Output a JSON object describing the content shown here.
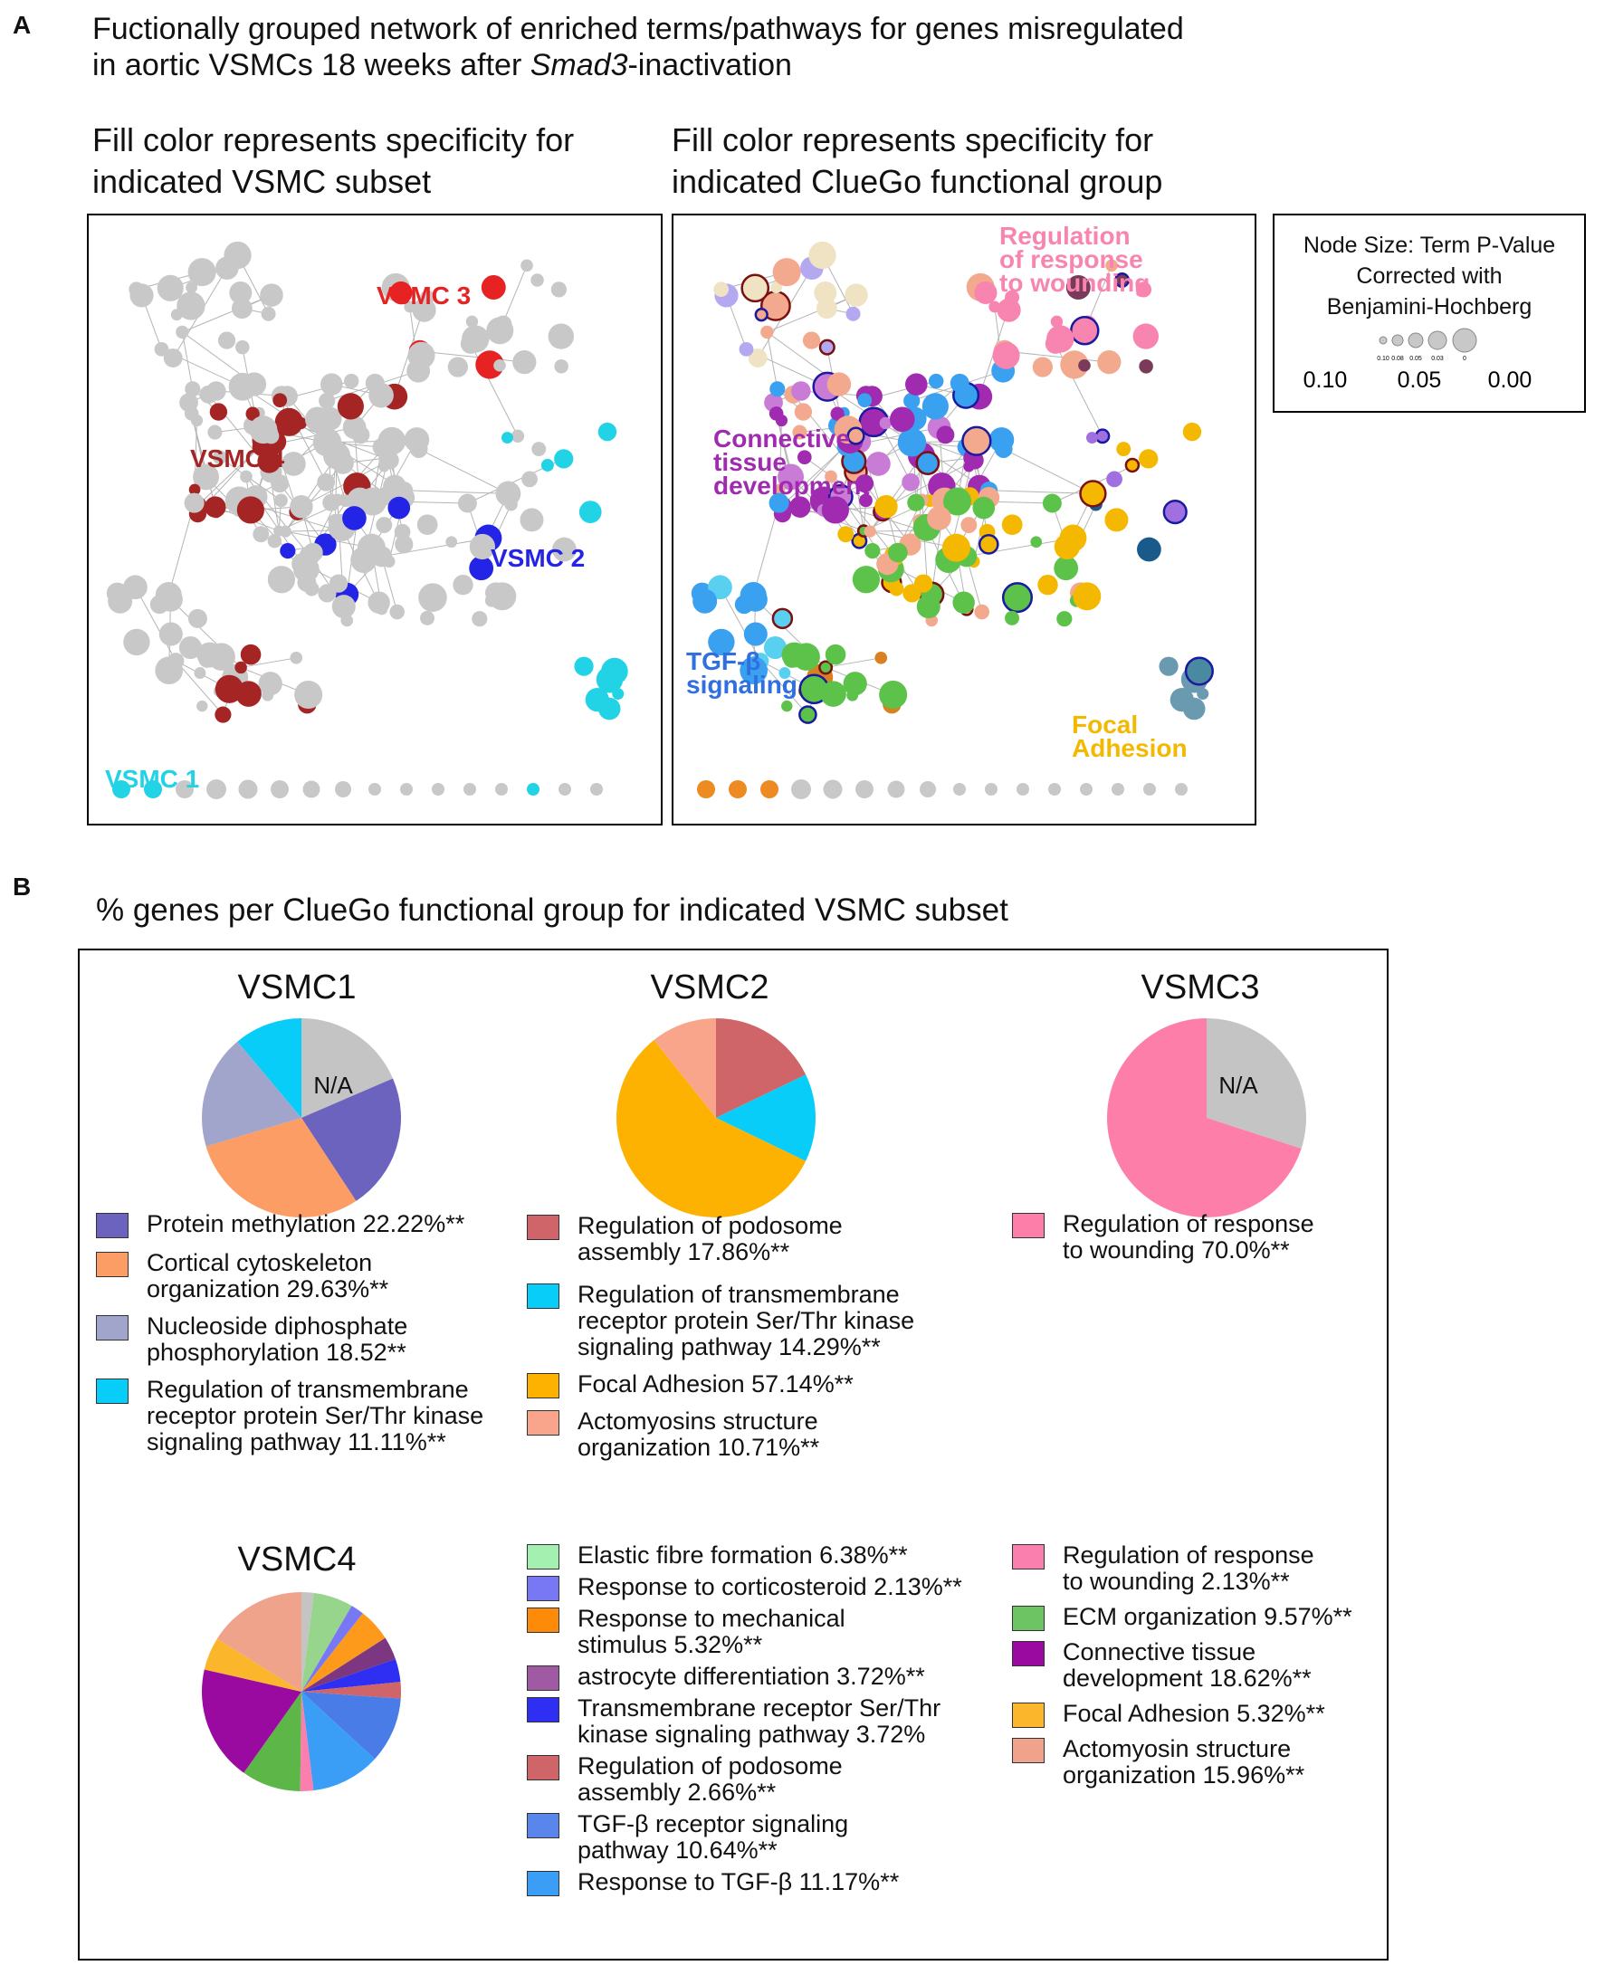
{
  "panelA": {
    "letter": "A",
    "title_line1": "Fuctionally grouped network of enriched terms/pathways for genes misregulated",
    "title_line2_pre": "in aortic VSMCs 18 weeks after ",
    "title_line2_italic": "Smad3",
    "title_line2_post": "-inactivation",
    "left_sub_line1": "Fill color represents specificity for",
    "left_sub_line2": "indicated VSMC subset",
    "right_sub_line1": "Fill color represents specificity for",
    "right_sub_line2": "indicated CluеGo functional group",
    "left_labels": {
      "vsmc3": "VSMC 3",
      "vsmc4": "VSMC 4",
      "vsmc2": "VSMC 2",
      "vsmc1": "VSMC 1"
    },
    "right_labels": {
      "wound1": "Regulation",
      "wound2": "of response",
      "wound3": "to wounding",
      "conn1": "Connective",
      "conn2": "tissue",
      "conn3": "development",
      "tgf1": "TGF-β",
      "tgf2": "signaling",
      "focal1": "Focal",
      "focal2": "Adhesion"
    },
    "node_size_legend": {
      "line1": "Node Size: Term P-Value",
      "line2": "Corrected with",
      "line3": "Benjamini-Hochberg",
      "small_ticks": [
        "0.10",
        "0.08",
        "0.05",
        "0.03",
        "0"
      ],
      "big_ticks": [
        "0.10",
        "0.05",
        "0.00"
      ]
    },
    "colors": {
      "grey": "#c8c8c8",
      "vsmc1": "#22d3e6",
      "vsmc2": "#2424e6",
      "vsmc3": "#e62222",
      "vsmc4": "#a52424",
      "wound": "#f785b0",
      "conn": "#a02ab0",
      "tgf": "#3aa0f0",
      "focal": "#f5b800",
      "ecm": "#5cc24a",
      "acto": "#f2a98d"
    }
  },
  "panelB": {
    "letter": "B",
    "title": "% genes per ClueGo functional group for indicated VSMC subset",
    "pies": [
      {
        "name": "VSMC1",
        "na_label": "N/A",
        "slices": [
          {
            "label": "N/A",
            "value": 18.52,
            "color": "#c4c4c4"
          },
          {
            "label": "Protein methylation",
            "value": 22.22,
            "color": "#6b63bd"
          },
          {
            "label": "Cortical cytoskeleton organization",
            "value": 29.63,
            "color": "#fb9d64"
          },
          {
            "label": "Nucleoside diphosphate phosphorylation",
            "value": 18.52,
            "color": "#a1a5cc"
          },
          {
            "label": "Regulation of transmembrane receptor protein Ser/Thr kinase signaling pathway",
            "value": 11.11,
            "color": "#08cdf8"
          }
        ]
      },
      {
        "name": "VSMC2",
        "slices": [
          {
            "label": "Regulation of podosome assembly",
            "value": 17.86,
            "color": "#cf6568"
          },
          {
            "label": "Regulation of transmembrane receptor protein Ser/Thr kinase signaling pathway",
            "value": 14.29,
            "color": "#08cdf8"
          },
          {
            "label": "Focal Adhesion",
            "value": 57.14,
            "color": "#fdb201"
          },
          {
            "label": "Actomyosins structure organization",
            "value": 10.71,
            "color": "#f9a58c"
          }
        ]
      },
      {
        "name": "VSMC3",
        "na_label": "N/A",
        "slices": [
          {
            "label": "N/A",
            "value": 30.0,
            "color": "#c4c4c4"
          },
          {
            "label": "Regulation of response to wounding",
            "value": 70.0,
            "color": "#fd7ea9"
          }
        ]
      },
      {
        "name": "VSMC4",
        "slices": [
          {
            "label": "N/A",
            "value": 2.0,
            "color": "#c4c4c4"
          },
          {
            "label": "Elastic fibre formation",
            "value": 6.38,
            "color": "#97d58c"
          },
          {
            "label": "Response to corticosteroid",
            "value": 2.13,
            "color": "#7878f4"
          },
          {
            "label": "Response to mechanical stimulus",
            "value": 5.32,
            "color": "#fd9a1c"
          },
          {
            "label": "astrocyte differentiation",
            "value": 3.72,
            "color": "#7d3680"
          },
          {
            "label": "Transmembrane receptor Ser/Thr kinase signaling pathway",
            "value": 3.72,
            "color": "#2e2ff2"
          },
          {
            "label": "Regulation of podosome assembly",
            "value": 2.66,
            "color": "#cf6568"
          },
          {
            "label": "TGF-β receptor signaling pathway",
            "value": 10.64,
            "color": "#4a7ce8"
          },
          {
            "label": "Response to TGF-β",
            "value": 11.17,
            "color": "#3a9ef6"
          },
          {
            "label": "Regulation of response to wounding",
            "value": 2.13,
            "color": "#fb7fae"
          },
          {
            "label": "ECM organization",
            "value": 9.57,
            "color": "#5cb748"
          },
          {
            "label": "Connective tissue development",
            "value": 18.62,
            "color": "#9a0aa0"
          },
          {
            "label": "Focal Adhesion",
            "value": 5.32,
            "color": "#fbb62c"
          },
          {
            "label": "Actomyosin structure organization",
            "value": 15.96,
            "color": "#efa38a"
          }
        ]
      }
    ],
    "legends": {
      "vsmc1": [
        {
          "text": "Protein methylation 22.22%**",
          "color": "#6b63bd"
        },
        {
          "text": "Cortical cytoskeleton\norganization 29.63%**",
          "color": "#fb9d64"
        },
        {
          "text": "Nucleoside diphosphate\nphosphorylation 18.52**",
          "color": "#a1a5cc"
        },
        {
          "text": "Regulation of transmembrane\nreceptor protein Ser/Thr kinase\nsignaling pathway 11.11%**",
          "color": "#08cdf8"
        }
      ],
      "vsmc2": [
        {
          "text": "Regulation of podosome\nassembly 17.86%**",
          "color": "#cf6568"
        },
        {
          "text": "Regulation of transmembrane\nreceptor protein Ser/Thr kinase\nsignaling pathway 14.29%**",
          "color": "#08cdf8"
        },
        {
          "text": "Focal Adhesion 57.14%**",
          "color": "#fdb201"
        },
        {
          "text": "Actomyosins structure\norganization  10.71%**",
          "color": "#f9a58c"
        }
      ],
      "vsmc3": [
        {
          "text": "Regulation of response\nto wounding  70.0%**",
          "color": "#fd7ea9"
        }
      ],
      "vsmc4_mid": [
        {
          "text": "Elastic fibre formation 6.38%**",
          "color": "#a3f0b0"
        },
        {
          "text": "Response to corticosteroid 2.13%**",
          "color": "#7878f4"
        },
        {
          "text": "Response to mechanical\nstimulus 5.32%**",
          "color": "#fd8a08"
        },
        {
          "text": "astrocyte differentiation 3.72%**",
          "color": "#a05aa4"
        },
        {
          "text": "Transmembrane receptor Ser/Thr\nkinase signaling pathway 3.72%",
          "color": "#2e2ff2"
        },
        {
          "text": "Regulation of podosome\nassembly 2.66%**",
          "color": "#cf6568"
        },
        {
          "text": "TGF-β receptor signaling\npathway 10.64%**",
          "color": "#5a86ec"
        },
        {
          "text": "Response to TGF-β 11.17%**",
          "color": "#3a9ef6"
        }
      ],
      "vsmc4_right": [
        {
          "text": "Regulation of response\nto wounding 2.13%**",
          "color": "#fb7fae"
        },
        {
          "text": "ECM organization 9.57%**",
          "color": "#6cc462"
        },
        {
          "text": "Connective tissue\ndevelopment 18.62%**",
          "color": "#9a0aa0"
        },
        {
          "text": "Focal Adhesion 5.32%**",
          "color": "#fbb62c"
        },
        {
          "text": "Actomyosin structure\norganization  15.96%**",
          "color": "#efa38a"
        }
      ]
    }
  }
}
